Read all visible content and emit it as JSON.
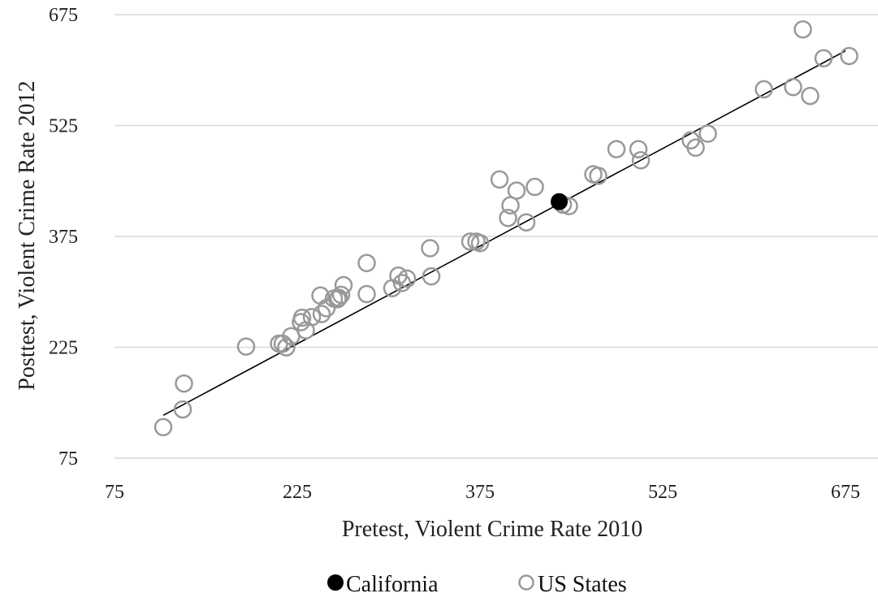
{
  "chart_data": {
    "type": "scatter",
    "title": "",
    "xlabel": "Pretest, Violent Crime Rate 2010",
    "ylabel": "Posttest, Violent Crime Rate 2012",
    "xlim": [
      75,
      675
    ],
    "ylim": [
      75,
      675
    ],
    "xticks": [
      "75",
      "225",
      "375",
      "525",
      "675"
    ],
    "yticks": [
      "75",
      "225",
      "375",
      "525",
      "675"
    ],
    "grid": "horizontal",
    "legend_position": "bottom",
    "colors": {
      "california": "#000000",
      "us_states": "#999999",
      "fit_line": "#000000",
      "grid": "#d9d9d9"
    },
    "series": [
      {
        "name": "California",
        "marker": "filled-circle",
        "points": [
          [
            440,
            422
          ]
        ]
      },
      {
        "name": "US States",
        "marker": "open-circle",
        "points": [
          [
            640,
            655
          ],
          [
            678,
            619
          ],
          [
            657,
            616
          ],
          [
            632,
            577
          ],
          [
            608,
            574
          ],
          [
            646,
            565
          ],
          [
            562,
            514
          ],
          [
            548,
            505
          ],
          [
            552,
            495
          ],
          [
            487,
            493
          ],
          [
            507,
            478
          ],
          [
            468,
            459
          ],
          [
            505,
            493
          ],
          [
            413,
            394
          ],
          [
            472,
            457
          ],
          [
            448,
            416
          ],
          [
            420,
            442
          ],
          [
            405,
            437
          ],
          [
            391,
            452
          ],
          [
            398,
            400
          ],
          [
            400,
            417
          ],
          [
            443,
            418
          ],
          [
            375,
            366
          ],
          [
            372,
            368
          ],
          [
            367,
            368
          ],
          [
            334,
            359
          ],
          [
            335,
            321
          ],
          [
            315,
            318
          ],
          [
            311,
            312
          ],
          [
            308,
            322
          ],
          [
            303,
            305
          ],
          [
            282,
            297
          ],
          [
            282,
            339
          ],
          [
            263,
            309
          ],
          [
            255,
            291
          ],
          [
            261,
            296
          ],
          [
            258,
            290
          ],
          [
            259,
            292
          ],
          [
            249,
            278
          ],
          [
            245,
            270
          ],
          [
            244,
            295
          ],
          [
            237,
            266
          ],
          [
            229,
            265
          ],
          [
            232,
            248
          ],
          [
            228,
            259
          ],
          [
            220,
            240
          ],
          [
            216,
            225
          ],
          [
            213,
            230
          ],
          [
            210,
            230
          ],
          [
            183,
            226
          ],
          [
            131,
            141
          ],
          [
            132,
            176
          ],
          [
            115,
            117
          ]
        ]
      }
    ],
    "fit_line": {
      "from": [
        115,
        133
      ],
      "to": [
        675,
        626
      ]
    }
  },
  "legend": {
    "california_label": "California",
    "us_states_label": "US States"
  }
}
